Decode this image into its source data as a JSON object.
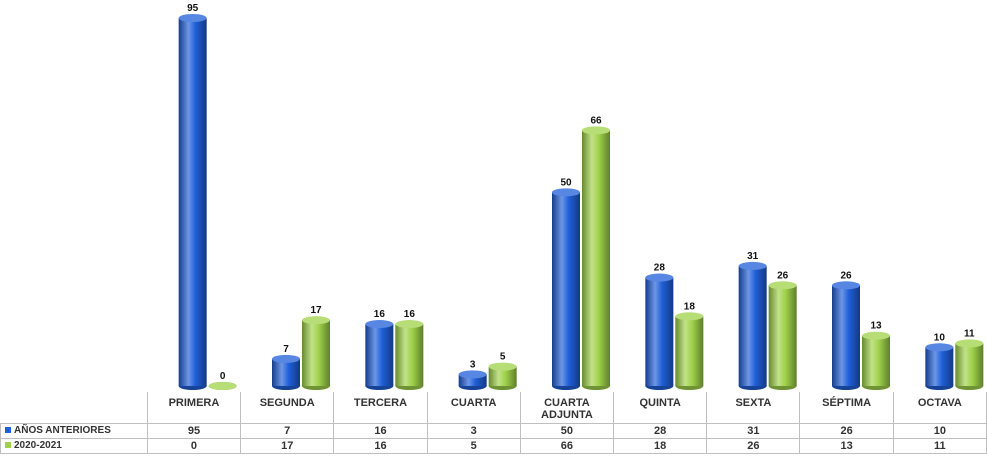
{
  "chart_data": {
    "type": "bar",
    "categories": [
      "PRIMERA",
      "SEGUNDA",
      "TERCERA",
      "CUARTA",
      "CUARTA ADJUNTA",
      "QUINTA",
      "SEXTA",
      "SÉPTIMA",
      "OCTAVA"
    ],
    "series": [
      {
        "name": "AÑOS ANTERIORES",
        "color": "#1f5fd8",
        "values": [
          95,
          7,
          16,
          3,
          50,
          28,
          31,
          26,
          10
        ]
      },
      {
        "name": "2020-2021",
        "color": "#9fd24a",
        "values": [
          0,
          17,
          16,
          5,
          66,
          18,
          26,
          13,
          11
        ]
      }
    ]
  }
}
